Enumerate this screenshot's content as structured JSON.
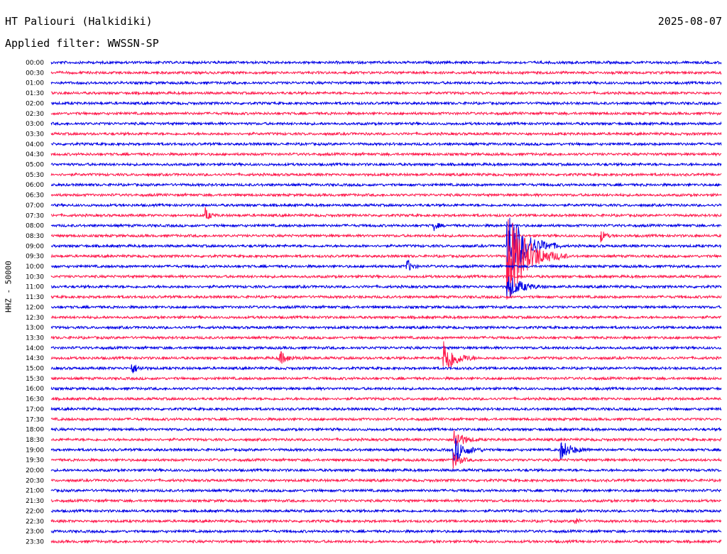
{
  "header": {
    "station": "HT Paliouri (Halkidiki)",
    "date": "2025-08-07",
    "filter": "Applied filter: WWSSN-SP"
  },
  "channel_label": "HHZ - 50000",
  "colors": {
    "trace_a": "#0000e6",
    "trace_b": "#ff1a4d"
  },
  "chart_data": {
    "type": "line",
    "row_labels": [
      "00:00",
      "00:30",
      "01:00",
      "01:30",
      "02:00",
      "02:30",
      "03:00",
      "03:30",
      "04:00",
      "04:30",
      "05:00",
      "05:30",
      "06:00",
      "06:30",
      "07:00",
      "07:30",
      "08:00",
      "08:30",
      "09:00",
      "09:30",
      "10:00",
      "10:30",
      "11:00",
      "11:30",
      "12:00",
      "12:30",
      "13:00",
      "13:30",
      "14:00",
      "14:30",
      "15:00",
      "15:30",
      "16:00",
      "16:30",
      "17:00",
      "17:30",
      "18:00",
      "18:30",
      "19:00",
      "19:30",
      "20:00",
      "20:30",
      "21:00",
      "21:30",
      "22:00",
      "22:30",
      "23:00",
      "23:30"
    ],
    "events": [
      {
        "row": 15,
        "pos": 0.23,
        "amp": 10,
        "len": 0.02
      },
      {
        "row": 16,
        "pos": 0.57,
        "amp": 8,
        "len": 0.02
      },
      {
        "row": 17,
        "pos": 0.82,
        "amp": 9,
        "len": 0.02
      },
      {
        "row": 18,
        "pos": 0.68,
        "amp": 60,
        "len": 0.08
      },
      {
        "row": 19,
        "pos": 0.68,
        "amp": 70,
        "len": 0.09
      },
      {
        "row": 20,
        "pos": 0.53,
        "amp": 12,
        "len": 0.02
      },
      {
        "row": 22,
        "pos": 0.68,
        "amp": 20,
        "len": 0.06
      },
      {
        "row": 29,
        "pos": 0.34,
        "amp": 10,
        "len": 0.04
      },
      {
        "row": 29,
        "pos": 0.585,
        "amp": 30,
        "len": 0.05
      },
      {
        "row": 30,
        "pos": 0.12,
        "amp": 8,
        "len": 0.03
      },
      {
        "row": 37,
        "pos": 0.6,
        "amp": 18,
        "len": 0.04
      },
      {
        "row": 38,
        "pos": 0.6,
        "amp": 20,
        "len": 0.05
      },
      {
        "row": 38,
        "pos": 0.76,
        "amp": 14,
        "len": 0.05
      },
      {
        "row": 39,
        "pos": 0.6,
        "amp": 12,
        "len": 0.03
      },
      {
        "row": 45,
        "pos": 0.78,
        "amp": 6,
        "len": 0.02
      }
    ]
  }
}
